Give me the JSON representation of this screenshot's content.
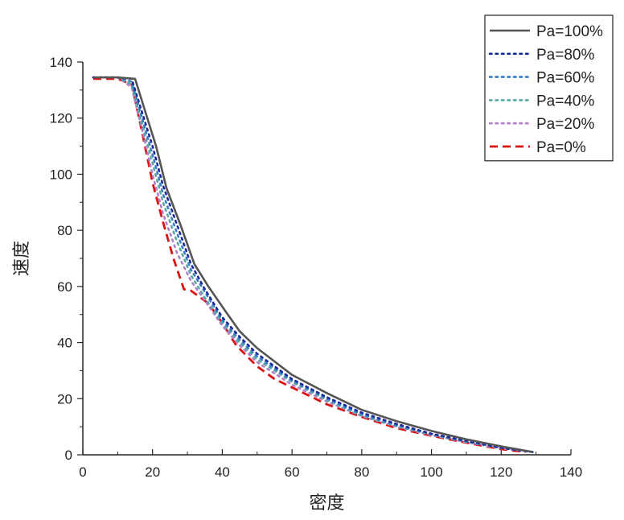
{
  "chart_data": {
    "type": "line",
    "xlabel": "密度",
    "ylabel": "速度",
    "xlim": [
      0,
      140
    ],
    "ylim": [
      0,
      140
    ],
    "x_ticks": [
      0,
      20,
      40,
      60,
      80,
      100,
      120,
      140
    ],
    "y_ticks": [
      0,
      20,
      40,
      60,
      80,
      100,
      120,
      140
    ],
    "grid": false,
    "legend_position": "top-right",
    "series": [
      {
        "name": "Pa=100%",
        "color": "#555555",
        "style": "solid",
        "points": [
          [
            3,
            134.5
          ],
          [
            10,
            134.5
          ],
          [
            15,
            134
          ],
          [
            18,
            122
          ],
          [
            21,
            110
          ],
          [
            24,
            95
          ],
          [
            28,
            82
          ],
          [
            32,
            68
          ],
          [
            36,
            60
          ],
          [
            41,
            51
          ],
          [
            45,
            44
          ],
          [
            50,
            38
          ],
          [
            60,
            28.5
          ],
          [
            70,
            22
          ],
          [
            80,
            16
          ],
          [
            90,
            12
          ],
          [
            100,
            8.5
          ],
          [
            110,
            5.5
          ],
          [
            120,
            3
          ],
          [
            129,
            1
          ]
        ]
      },
      {
        "name": "Pa=80%",
        "color": "#1a2a9a",
        "style": "dotted",
        "points": [
          [
            3,
            134.5
          ],
          [
            10,
            134.5
          ],
          [
            14,
            134
          ],
          [
            17,
            122
          ],
          [
            20,
            110
          ],
          [
            23,
            96
          ],
          [
            27,
            82
          ],
          [
            31,
            68
          ],
          [
            35,
            59
          ],
          [
            40,
            49
          ],
          [
            45,
            42
          ],
          [
            50,
            36
          ],
          [
            60,
            27
          ],
          [
            70,
            20.5
          ],
          [
            80,
            15
          ],
          [
            90,
            11
          ],
          [
            100,
            7.5
          ],
          [
            110,
            5
          ],
          [
            120,
            2.5
          ],
          [
            129,
            1
          ]
        ]
      },
      {
        "name": "Pa=60%",
        "color": "#3a7ac8",
        "style": "dotted",
        "points": [
          [
            3,
            134.5
          ],
          [
            10,
            134.5
          ],
          [
            14,
            133
          ],
          [
            17,
            120
          ],
          [
            20,
            107
          ],
          [
            23,
            93
          ],
          [
            27,
            79
          ],
          [
            31,
            66
          ],
          [
            35,
            58
          ],
          [
            40,
            48
          ],
          [
            45,
            41
          ],
          [
            50,
            35
          ],
          [
            60,
            26.5
          ],
          [
            70,
            20
          ],
          [
            80,
            14.5
          ],
          [
            90,
            10.5
          ],
          [
            100,
            7.5
          ],
          [
            110,
            4.8
          ],
          [
            120,
            2.5
          ],
          [
            129,
            1
          ]
        ]
      },
      {
        "name": "Pa=40%",
        "color": "#5aa8a0",
        "style": "dotted",
        "points": [
          [
            3,
            134.5
          ],
          [
            10,
            134.5
          ],
          [
            14,
            132
          ],
          [
            17,
            118
          ],
          [
            20,
            104
          ],
          [
            23,
            90
          ],
          [
            27,
            76
          ],
          [
            31,
            64
          ],
          [
            35,
            56
          ],
          [
            40,
            47
          ],
          [
            45,
            40
          ],
          [
            50,
            34
          ],
          [
            60,
            26
          ],
          [
            70,
            19.5
          ],
          [
            80,
            14
          ],
          [
            90,
            10.2
          ],
          [
            100,
            7.2
          ],
          [
            110,
            4.6
          ],
          [
            120,
            2.4
          ],
          [
            129,
            1
          ]
        ]
      },
      {
        "name": "Pa=20%",
        "color": "#b080cc",
        "style": "dotted",
        "points": [
          [
            3,
            134.5
          ],
          [
            10,
            134.5
          ],
          [
            14,
            131
          ],
          [
            17,
            116
          ],
          [
            20,
            100
          ],
          [
            23,
            86
          ],
          [
            27,
            72
          ],
          [
            31,
            62
          ],
          [
            35,
            55
          ],
          [
            40,
            46
          ],
          [
            45,
            39
          ],
          [
            50,
            33
          ],
          [
            60,
            25
          ],
          [
            70,
            19
          ],
          [
            80,
            13.8
          ],
          [
            90,
            10
          ],
          [
            100,
            7
          ],
          [
            110,
            4.5
          ],
          [
            120,
            2.3
          ],
          [
            129,
            1
          ]
        ]
      },
      {
        "name": "Pa=0%",
        "color": "#dd1111",
        "style": "dashed",
        "points": [
          [
            3,
            134
          ],
          [
            10,
            134
          ],
          [
            14,
            132
          ],
          [
            17,
            115
          ],
          [
            20,
            97
          ],
          [
            23,
            83
          ],
          [
            26,
            70
          ],
          [
            29,
            59
          ],
          [
            31,
            58.5
          ],
          [
            36,
            54
          ],
          [
            40,
            47
          ],
          [
            44,
            39
          ],
          [
            50,
            31.5
          ],
          [
            55,
            27
          ],
          [
            60,
            24
          ],
          [
            70,
            18
          ],
          [
            80,
            13.5
          ],
          [
            90,
            9.5
          ],
          [
            100,
            6.8
          ],
          [
            110,
            4.3
          ],
          [
            120,
            2
          ],
          [
            127,
            1
          ]
        ]
      }
    ]
  }
}
